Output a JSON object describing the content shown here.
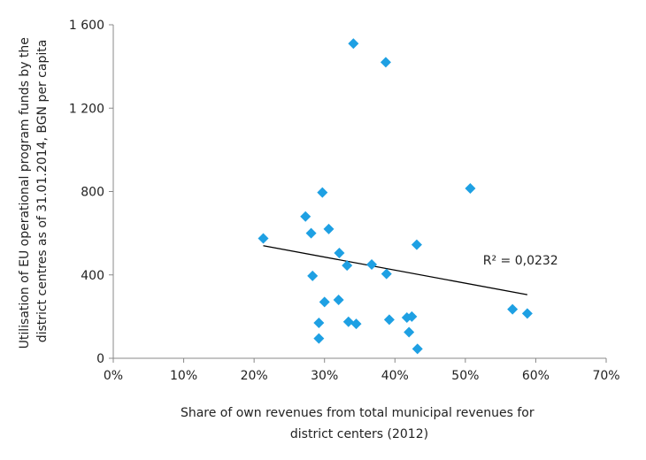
{
  "chart_data": {
    "type": "scatter",
    "xlabel_lines": [
      "Share of own revenues from total municipal revenues for",
      "district centers (2012)"
    ],
    "ylabel_lines": [
      "Utilisation of EU operational program funds by the",
      "district centres as of 31.01.2014, BGN per capita"
    ],
    "xlim": [
      0,
      0.7
    ],
    "ylim": [
      0,
      1600
    ],
    "x_ticks": [
      0,
      0.1,
      0.2,
      0.3,
      0.4,
      0.5,
      0.6,
      0.7
    ],
    "x_tick_labels": [
      "0%",
      "10%",
      "20%",
      "30%",
      "40%",
      "50%",
      "60%",
      "70%"
    ],
    "y_ticks": [
      0,
      400,
      800,
      1200,
      1600
    ],
    "y_tick_labels": [
      "0",
      "400",
      "800",
      "1 200",
      "1 600"
    ],
    "grid": false,
    "legend": "none",
    "marker_color": "#1EA0E3",
    "trendline_color": "#000000",
    "points": [
      {
        "x": 0.213,
        "y": 575
      },
      {
        "x": 0.273,
        "y": 680
      },
      {
        "x": 0.281,
        "y": 600
      },
      {
        "x": 0.283,
        "y": 395
      },
      {
        "x": 0.292,
        "y": 170
      },
      {
        "x": 0.292,
        "y": 95
      },
      {
        "x": 0.297,
        "y": 795
      },
      {
        "x": 0.3,
        "y": 270
      },
      {
        "x": 0.306,
        "y": 620
      },
      {
        "x": 0.32,
        "y": 280
      },
      {
        "x": 0.321,
        "y": 505
      },
      {
        "x": 0.332,
        "y": 445
      },
      {
        "x": 0.334,
        "y": 175
      },
      {
        "x": 0.341,
        "y": 1510
      },
      {
        "x": 0.345,
        "y": 165
      },
      {
        "x": 0.367,
        "y": 450
      },
      {
        "x": 0.387,
        "y": 1420
      },
      {
        "x": 0.388,
        "y": 405
      },
      {
        "x": 0.392,
        "y": 185
      },
      {
        "x": 0.417,
        "y": 195
      },
      {
        "x": 0.42,
        "y": 125
      },
      {
        "x": 0.424,
        "y": 200
      },
      {
        "x": 0.431,
        "y": 545
      },
      {
        "x": 0.432,
        "y": 45
      },
      {
        "x": 0.507,
        "y": 815
      },
      {
        "x": 0.567,
        "y": 235
      },
      {
        "x": 0.588,
        "y": 215
      }
    ],
    "trendline": {
      "x": [
        0.213,
        0.588
      ],
      "y": [
        540,
        305
      ]
    },
    "annotation": {
      "text": "R² = 0,0232",
      "x": 0.525,
      "y": 450
    }
  }
}
